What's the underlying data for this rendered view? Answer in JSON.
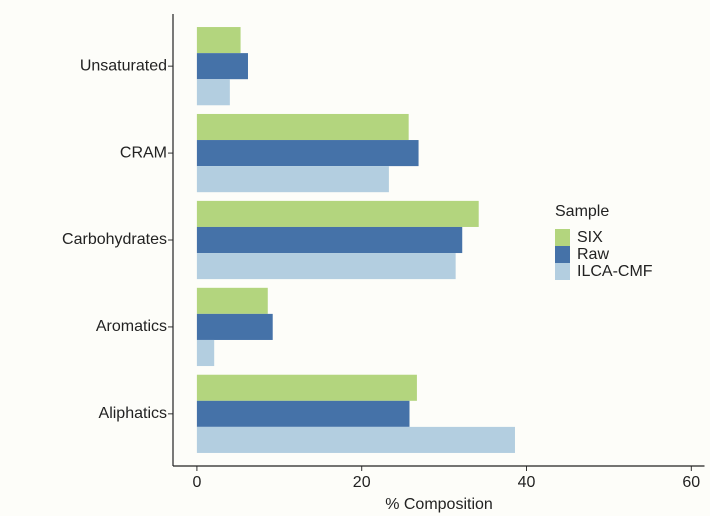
{
  "chart_data": {
    "type": "bar",
    "orientation": "horizontal",
    "x_label": "% Composition",
    "categories": [
      "Unsaturated",
      "CRAM",
      "Carbohydrates",
      "Aromatics",
      "Aliphatics"
    ],
    "series": [
      {
        "name": "SIX",
        "color": "#b3d57e",
        "values": [
          5.3,
          25.7,
          34.2,
          8.6,
          26.7
        ]
      },
      {
        "name": "Raw",
        "color": "#4572a8",
        "values": [
          6.2,
          26.9,
          32.2,
          9.2,
          25.8
        ]
      },
      {
        "name": "ILCA-CMF",
        "color": "#b3cee0",
        "values": [
          4.0,
          23.3,
          31.4,
          2.1,
          38.6
        ]
      }
    ],
    "legend_title": "Sample",
    "legend": "right",
    "xlim": [
      -2.9,
      61.6
    ],
    "xticks": [
      0,
      20,
      40,
      60
    ]
  }
}
